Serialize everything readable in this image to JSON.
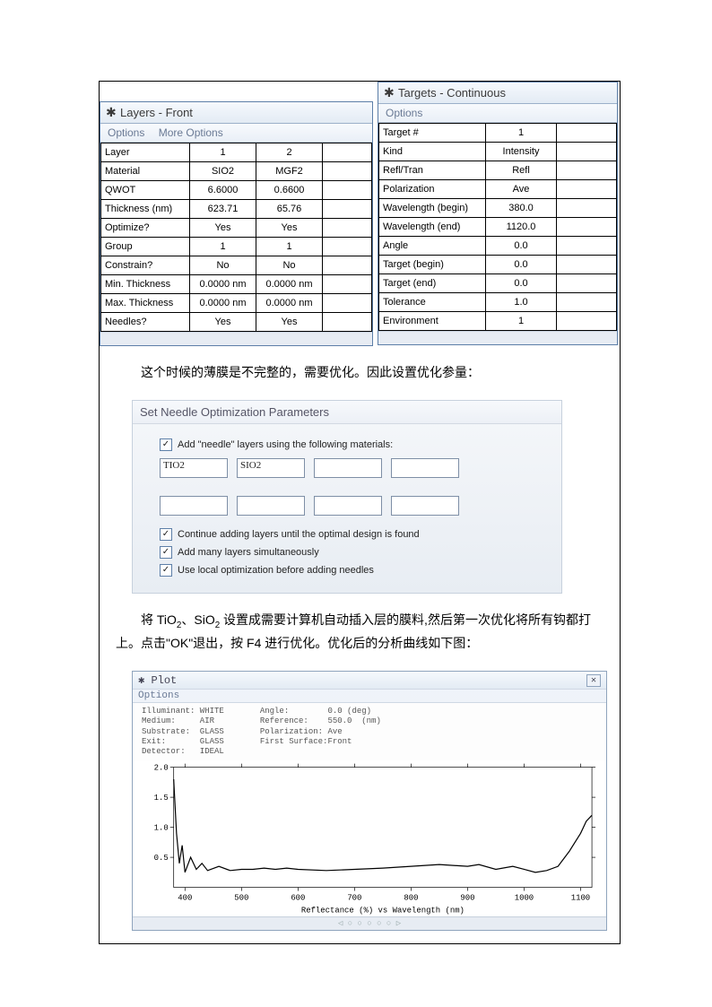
{
  "layers_window": {
    "title": "Layers - Front",
    "menu": [
      "Options",
      "More Options"
    ],
    "rows": [
      {
        "label": "Layer",
        "c1": "1",
        "c2": "2"
      },
      {
        "label": "Material",
        "c1": "SIO2",
        "c2": "MGF2"
      },
      {
        "label": "QWOT",
        "c1": "6.6000",
        "c2": "0.6600"
      },
      {
        "label": "Thickness (nm)",
        "c1": "623.71",
        "c2": "65.76"
      },
      {
        "label": "Optimize?",
        "c1": "Yes",
        "c2": "Yes"
      },
      {
        "label": "Group",
        "c1": "1",
        "c2": "1"
      },
      {
        "label": "Constrain?",
        "c1": "No",
        "c2": "No"
      },
      {
        "label": "Min. Thickness",
        "c1": "0.0000 nm",
        "c2": "0.0000 nm"
      },
      {
        "label": "Max. Thickness",
        "c1": "0.0000 nm",
        "c2": "0.0000 nm"
      },
      {
        "label": "Needles?",
        "c1": "Yes",
        "c2": "Yes"
      }
    ]
  },
  "targets_window": {
    "title": "Targets - Continuous",
    "menu": [
      "Options"
    ],
    "rows": [
      {
        "label": "Target #",
        "c1": "1"
      },
      {
        "label": "Kind",
        "c1": "Intensity"
      },
      {
        "label": "Refl/Tran",
        "c1": "Refl"
      },
      {
        "label": "Polarization",
        "c1": "Ave"
      },
      {
        "label": "Wavelength (begin)",
        "c1": "380.0"
      },
      {
        "label": "Wavelength (end)",
        "c1": "1120.0"
      },
      {
        "label": "Angle",
        "c1": "0.0"
      },
      {
        "label": "Target (begin)",
        "c1": "0.0"
      },
      {
        "label": "Target (end)",
        "c1": "0.0"
      },
      {
        "label": "Tolerance",
        "c1": "1.0"
      },
      {
        "label": "Environment",
        "c1": "1"
      }
    ]
  },
  "text1": "这个时候的薄膜是不完整的，需要优化。因此设置优化参量：",
  "needle_panel": {
    "title": "Set Needle Optimization Parameters",
    "add_label": "Add \"needle\" layers using the following materials:",
    "materials": [
      "TIO2",
      "SIO2",
      "",
      "",
      "",
      "",
      "",
      ""
    ],
    "opt1": "Continue adding layers until the optimal design is found",
    "opt2": "Add many layers simultaneously",
    "opt3": "Use local optimization before adding needles"
  },
  "text2a": "将 TiO",
  "text2a_sub": "2",
  "text2b": "、SiO",
  "text2b_sub": "2",
  "text2c": " 设置成需要计算机自动插入层的膜料,然后第一次优化将所有钩都打上。点击\"OK\"退出，按 F4 进行优化。优化后的分析曲线如下图：",
  "plot": {
    "type": "line",
    "title": "Plot",
    "menu": "Options",
    "info_left": "Illuminant: WHITE\nMedium:     AIR\nSubstrate:  GLASS\nExit:       GLASS\nDetector:   IDEAL",
    "info_right": "Angle:        0.0 (deg)\nReference:    550.0  (nm)\nPolarization: Ave\nFirst Surface:Front",
    "xlabel": "Reflectance (%)  vs  Wavelength (nm)",
    "xlim": [
      380,
      1120
    ],
    "ylim": [
      0,
      2.0
    ],
    "xticks": [
      400,
      500,
      600,
      700,
      800,
      900,
      1000,
      1100
    ],
    "yticks": [
      0.5,
      1.0,
      1.5,
      2.0
    ],
    "xtick_labels": [
      "400",
      "500",
      "600",
      "700",
      "800",
      "900",
      "1000",
      "1100"
    ],
    "ytick_labels": [
      "0.5",
      "1.0",
      "1.5",
      "2.0"
    ],
    "series_color": "#000000",
    "grid_color": "#000000",
    "background_color": "#ffffff",
    "axis_fontsize": 9,
    "data": [
      [
        380,
        1.8
      ],
      [
        385,
        0.9
      ],
      [
        390,
        0.4
      ],
      [
        395,
        0.7
      ],
      [
        400,
        0.25
      ],
      [
        410,
        0.5
      ],
      [
        420,
        0.3
      ],
      [
        430,
        0.4
      ],
      [
        440,
        0.28
      ],
      [
        460,
        0.35
      ],
      [
        480,
        0.28
      ],
      [
        500,
        0.3
      ],
      [
        520,
        0.3
      ],
      [
        540,
        0.32
      ],
      [
        560,
        0.3
      ],
      [
        580,
        0.32
      ],
      [
        600,
        0.3
      ],
      [
        650,
        0.28
      ],
      [
        700,
        0.3
      ],
      [
        750,
        0.32
      ],
      [
        800,
        0.35
      ],
      [
        850,
        0.38
      ],
      [
        900,
        0.35
      ],
      [
        920,
        0.38
      ],
      [
        950,
        0.3
      ],
      [
        980,
        0.35
      ],
      [
        1000,
        0.3
      ],
      [
        1020,
        0.25
      ],
      [
        1040,
        0.28
      ],
      [
        1060,
        0.35
      ],
      [
        1080,
        0.6
      ],
      [
        1100,
        0.9
      ],
      [
        1110,
        1.1
      ],
      [
        1120,
        1.2
      ]
    ]
  }
}
